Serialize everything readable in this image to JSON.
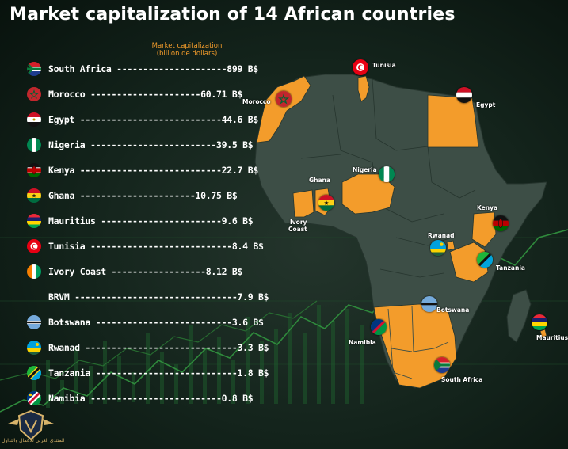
{
  "title": "Market capitalization of 14 African countries",
  "subhead": {
    "line1": "Market capitalization",
    "line2": "(billion de dollars)"
  },
  "chart_data": {
    "type": "table",
    "title": "Market capitalization of 14 African countries",
    "unit": "B$",
    "rows": [
      {
        "country": "South Africa",
        "value": 899,
        "display": "South Africa ---------------------899 B$"
      },
      {
        "country": "Morocco",
        "value": 60.71,
        "display": "Morocco ---------------------60.71 B$"
      },
      {
        "country": "Egypt",
        "value": 44.6,
        "display": "Egypt ---------------------------44.6 B$"
      },
      {
        "country": "Nigeria",
        "value": 39.5,
        "display": "Nigeria ------------------------39.5 B$"
      },
      {
        "country": "Kenya",
        "value": 22.7,
        "display": "Kenya ---------------------------22.7 B$"
      },
      {
        "country": "Ghana",
        "value": 10.75,
        "display": "Ghana ----------------------10.75 B$"
      },
      {
        "country": "Mauritius",
        "value": 9.6,
        "display": "Mauritius -----------------------9.6 B$"
      },
      {
        "country": "Tunisia",
        "value": 8.4,
        "display": "Tunisia ---------------------------8.4 B$"
      },
      {
        "country": "Ivory Coast",
        "value": 8.12,
        "display": "Ivory Coast ------------------8.12 B$"
      },
      {
        "country": "BRVM",
        "value": 7.9,
        "display": "BRVM -------------------------------7.9 B$"
      },
      {
        "country": "Botswana",
        "value": 3.6,
        "display": "Botswana --------------------------3.6 B$"
      },
      {
        "country": "Rwanad",
        "value": 3.3,
        "display": "Rwanad -----------------------------3.3 B$"
      },
      {
        "country": "Tanzania",
        "value": 1.8,
        "display": "Tanzania ---------------------------1.8 B$"
      },
      {
        "country": "Namibia",
        "value": 0.8,
        "display": "Namibia -------------------------0.8 B$"
      }
    ]
  },
  "map_labels": {
    "tunisia": "Tunisia",
    "morocco": "Morocco",
    "egypt": "Egypt",
    "ghana": "Ghana",
    "nigeria": "Nigeria",
    "ivory_coast_1": "Ivory",
    "ivory_coast_2": "Coast",
    "kenya": "Kenya",
    "rwanad": "Rwanad",
    "tanzania": "Tanzania",
    "botswana": "Botswana",
    "namibia": "Namibia",
    "south_africa": "South Africa",
    "mauritius": "Mauritius"
  },
  "logo_text": "المنتدى العربي للأعمال والتداول",
  "colors": {
    "highlight": "#f39c2b",
    "continent": "#3d4e46",
    "background": "#13231b",
    "text": "#ffffff",
    "chart_line": "#2f8a3c"
  },
  "icons": [
    "flag-south-africa-icon",
    "flag-morocco-icon",
    "flag-egypt-icon",
    "flag-nigeria-icon",
    "flag-kenya-icon",
    "flag-ghana-icon",
    "flag-mauritius-icon",
    "flag-tunisia-icon",
    "flag-ivory-coast-icon",
    "flag-botswana-icon",
    "flag-rwanda-icon",
    "flag-tanzania-icon",
    "flag-namibia-icon",
    "logo-shield-icon"
  ]
}
